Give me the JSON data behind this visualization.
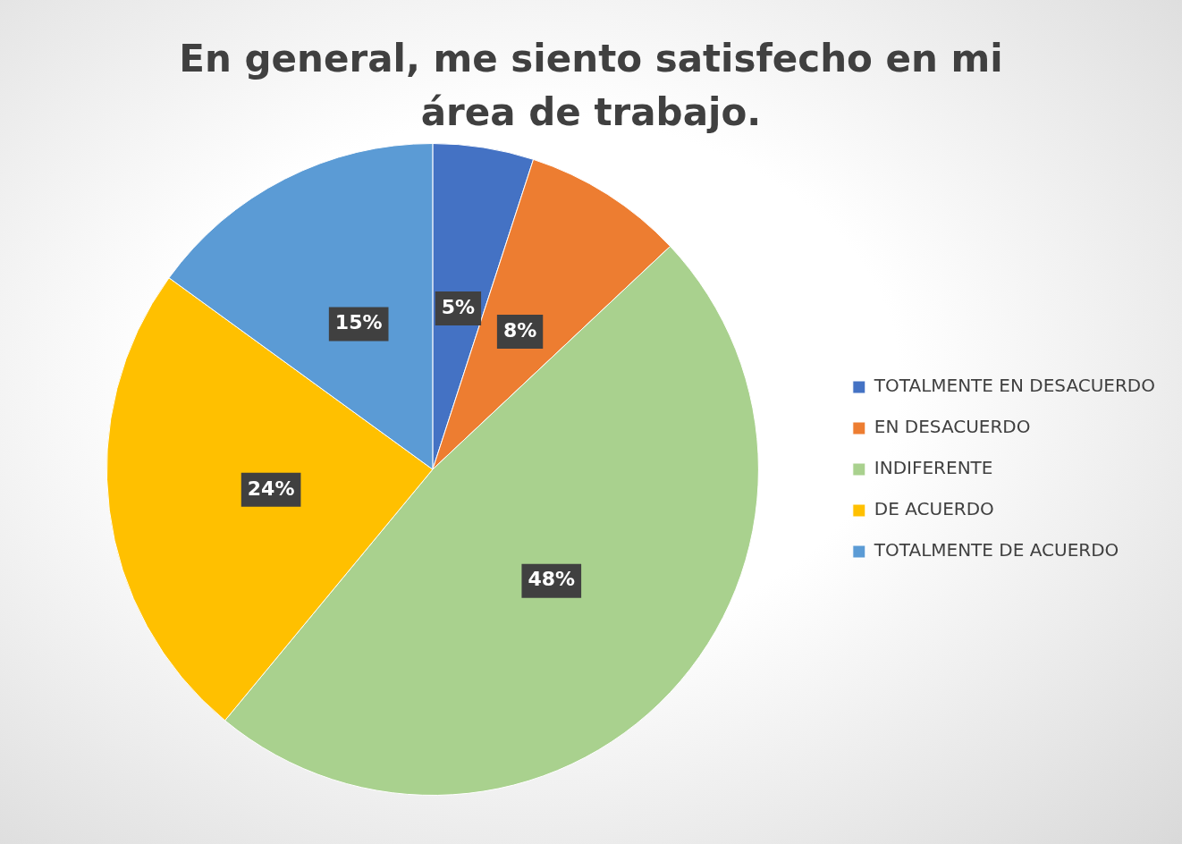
{
  "chart_data": {
    "type": "pie",
    "title": "En general, me siento satisfecho en mi área de trabajo.",
    "categories": [
      "TOTALMENTE EN DESACUERDO",
      "EN DESACUERDO",
      "INDIFERENTE",
      "DE ACUERDO",
      "TOTALMENTE DE ACUERDO"
    ],
    "values": [
      5,
      8,
      48,
      24,
      15
    ],
    "colors": [
      "#4472c4",
      "#ed7d31",
      "#a9d18e",
      "#ffc000",
      "#5b9bd5"
    ],
    "value_labels": [
      "5%",
      "8%",
      "48%",
      "24%",
      "15%"
    ],
    "legend": "right"
  }
}
